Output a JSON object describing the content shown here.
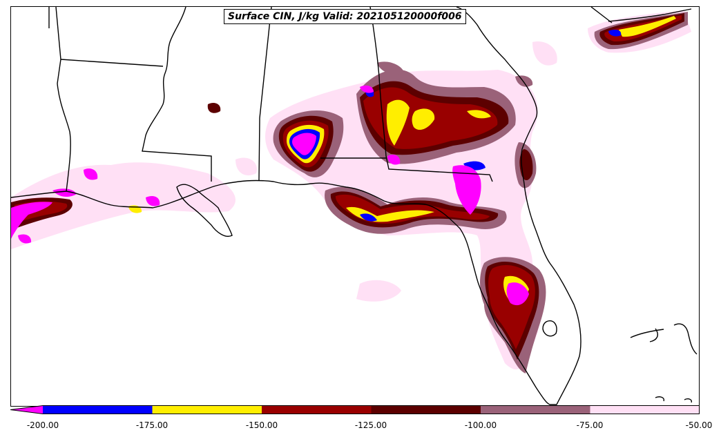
{
  "title": "Surface CIN, J/kg Valid: 202105120000f006",
  "legend": {
    "bins": [
      {
        "from": -200,
        "to": -175,
        "color": "#0000ff"
      },
      {
        "from": -175,
        "to": -150,
        "color": "#ffee00"
      },
      {
        "from": -150,
        "to": -125,
        "color": "#990000"
      },
      {
        "from": -125,
        "to": -100,
        "color": "#5c0000"
      },
      {
        "from": -100,
        "to": -75,
        "color": "#9a6279"
      },
      {
        "from": -75,
        "to": -50,
        "color": "#ffe0f5"
      }
    ],
    "under_color": "#ff00ff",
    "tick_labels": [
      "-200.00",
      "-175.00",
      "-150.00",
      "-125.00",
      "-100.00",
      "-75.00",
      "-50.00"
    ]
  },
  "colors": {
    "magenta": "#ff00ff",
    "blue": "#0000ff",
    "yellow": "#ffee00",
    "darkred": "#990000",
    "maroon": "#5c0000",
    "mauve": "#9a6279",
    "pink": "#ffe0f5"
  }
}
